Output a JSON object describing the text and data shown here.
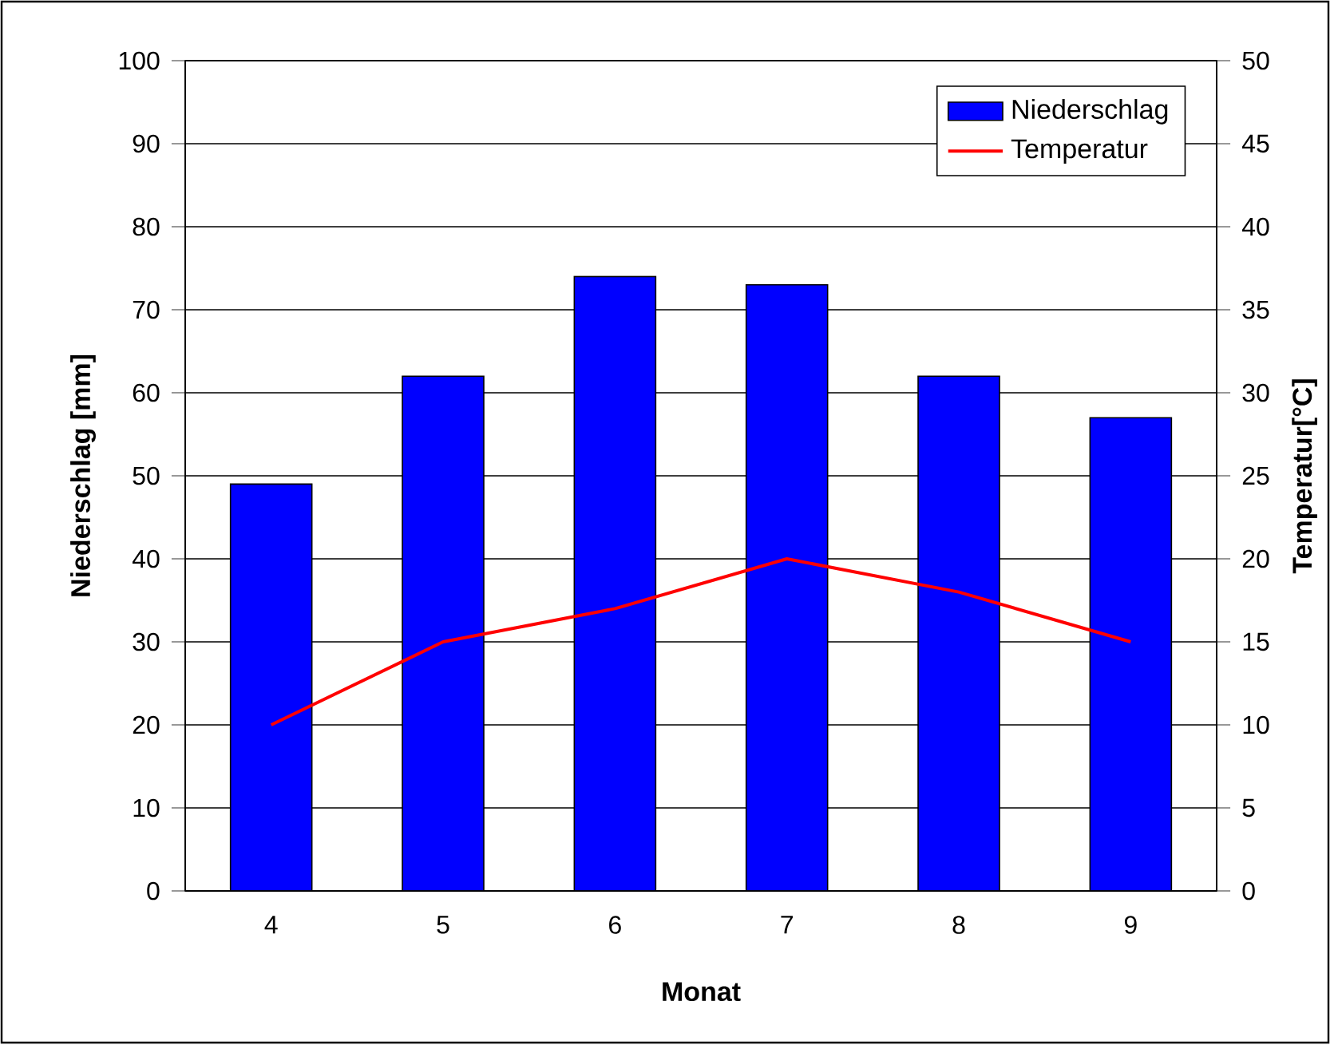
{
  "chart_data": {
    "type": "bar",
    "xlabel": "Monat",
    "ylabel": "Niederschlag [mm]",
    "y2label": "Temperatur[°C]",
    "categories": [
      "4",
      "5",
      "6",
      "7",
      "8",
      "9"
    ],
    "series": [
      {
        "name": "Niederschlag",
        "color": "#0000ff",
        "values": [
          49,
          62,
          74,
          73,
          62,
          57
        ]
      },
      {
        "name": "Temperatur",
        "type": "line",
        "axis": "y2",
        "color": "#ff0000",
        "values": [
          10,
          15,
          17,
          20,
          18,
          15
        ]
      }
    ],
    "ylim": [
      0,
      100
    ],
    "yticks": [
      0,
      10,
      20,
      30,
      40,
      50,
      60,
      70,
      80,
      90,
      100
    ],
    "y2lim": [
      0,
      50
    ],
    "y2ticks": [
      0,
      5,
      10,
      15,
      20,
      25,
      30,
      35,
      40,
      45,
      50
    ],
    "grid": "y",
    "legend": "top right"
  }
}
